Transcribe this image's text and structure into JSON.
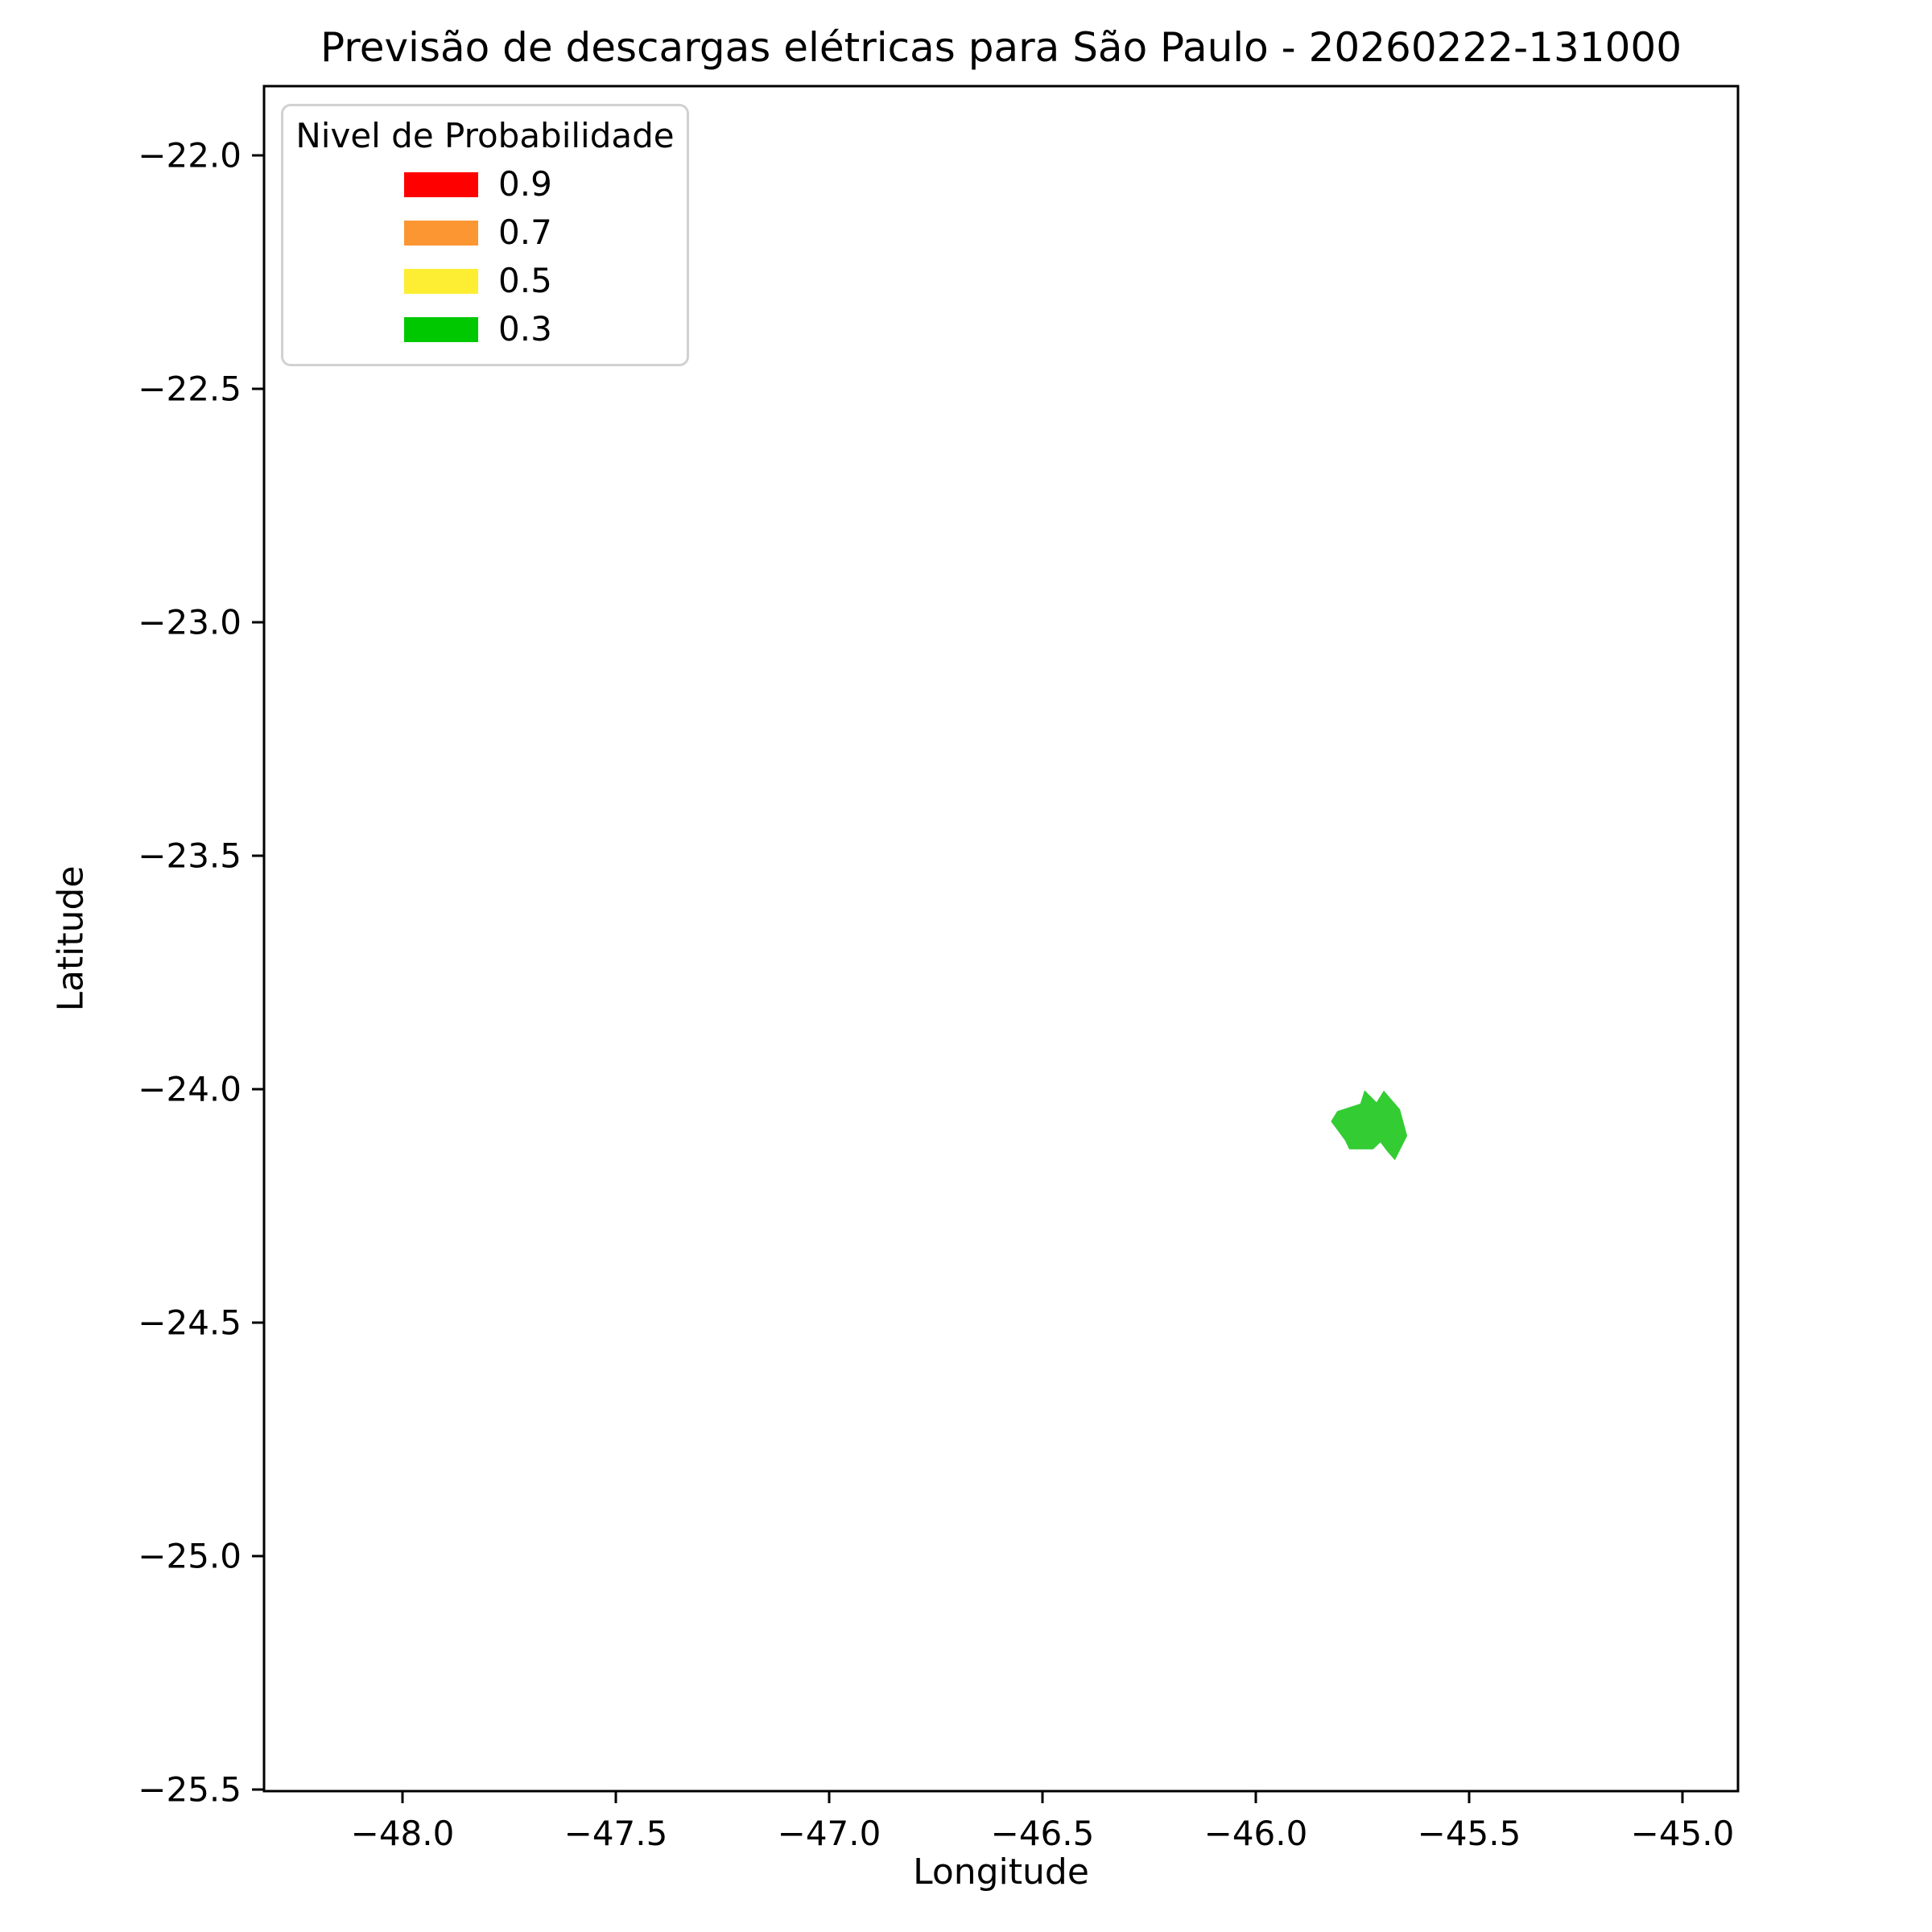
{
  "figure": {
    "title": "Previsão de descargas elétricas para São Paulo - 20260222-131000",
    "xlabel": "Longitude",
    "ylabel": "Latitude"
  },
  "legend": {
    "title": "Nivel de Probabilidade",
    "entries": [
      {
        "label": "0.9",
        "color": "#ff0000"
      },
      {
        "label": "0.7",
        "color": "#fb9632"
      },
      {
        "label": "0.5",
        "color": "#fdee33"
      },
      {
        "label": "0.3",
        "color": "#00c800"
      }
    ]
  },
  "chart_data": {
    "type": "area",
    "geometry": "geographic-polygon-map",
    "title": "Previsão de descargas elétricas para São Paulo - 20260222-131000",
    "xlabel": "Longitude",
    "ylabel": "Latitude",
    "xlim": [
      -48.3245,
      -44.8698
    ],
    "ylim": [
      -25.5034,
      -21.8517
    ],
    "grid": false,
    "legend_position": "upper left",
    "legend_title": "Nivel de Probabilidade",
    "x_ticks": {
      "values": [
        -48.0,
        -47.5,
        -47.0,
        -46.5,
        -46.0,
        -45.5,
        -45.0
      ],
      "labels": [
        "−48.0",
        "−47.5",
        "−47.0",
        "−46.5",
        "−46.0",
        "−45.5",
        "−45.0"
      ]
    },
    "y_ticks": {
      "values": [
        -22.0,
        -22.5,
        -23.0,
        -23.5,
        -24.0,
        -24.5,
        -25.0,
        -25.5
      ],
      "labels": [
        "−22.0",
        "−22.5",
        "−23.0",
        "−23.5",
        "−24.0",
        "−24.5",
        "−25.0",
        "−25.5"
      ]
    },
    "series": [
      {
        "name": "probability-level-0.3",
        "probability_level": "0.3",
        "fill_color": "#33cc33",
        "polygon_lon_lat": [
          [
            -45.824,
            -24.069
          ],
          [
            -45.809,
            -24.047
          ],
          [
            -45.755,
            -24.031
          ],
          [
            -45.745,
            -24.002
          ],
          [
            -45.717,
            -24.028
          ],
          [
            -45.7,
            -24.003
          ],
          [
            -45.662,
            -24.043
          ],
          [
            -45.645,
            -24.1
          ],
          [
            -45.674,
            -24.152
          ],
          [
            -45.692,
            -24.133
          ],
          [
            -45.708,
            -24.114
          ],
          [
            -45.725,
            -24.129
          ],
          [
            -45.781,
            -24.129
          ],
          [
            -45.791,
            -24.11
          ]
        ]
      }
    ]
  }
}
